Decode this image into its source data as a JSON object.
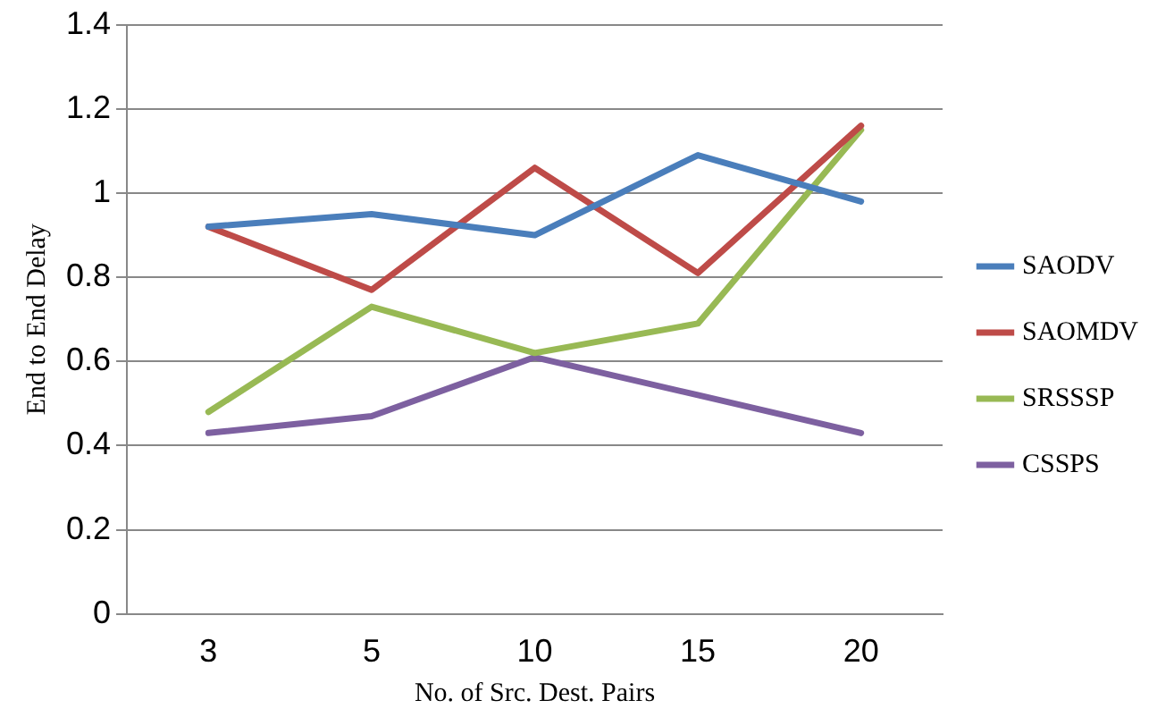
{
  "chart_data": {
    "type": "line",
    "xlabel": "No. of Src. Dest. Pairs",
    "ylabel": "End to End Delay",
    "categories": [
      "3",
      "5",
      "10",
      "15",
      "20"
    ],
    "series": [
      {
        "name": "SAODV",
        "color": "#4a7ebb",
        "values": [
          0.92,
          0.95,
          0.9,
          1.09,
          0.98
        ]
      },
      {
        "name": "SAOMDV",
        "color": "#be4b48",
        "values": [
          0.92,
          0.77,
          1.06,
          0.81,
          1.16
        ]
      },
      {
        "name": "SRSSSP",
        "color": "#98b954",
        "values": [
          0.48,
          0.73,
          0.62,
          0.69,
          1.15
        ]
      },
      {
        "name": "CSSPS",
        "color": "#7d60a0",
        "values": [
          0.43,
          0.47,
          0.61,
          0.52,
          0.43
        ]
      }
    ],
    "ylim": [
      0,
      1.4
    ],
    "yticks": [
      0,
      0.2,
      0.4,
      0.6,
      0.8,
      1,
      1.2,
      1.4
    ],
    "grid": "y",
    "legend": "right",
    "marker": "none",
    "line_style": "solid"
  }
}
